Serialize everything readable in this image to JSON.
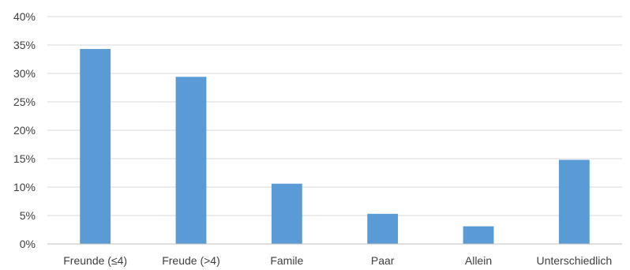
{
  "colors": {
    "bar": "#5B9BD5",
    "grid": "#D9D9D9",
    "axis": "#BFBFBF",
    "text": "#404040"
  },
  "chart_data": {
    "type": "bar",
    "title": "",
    "xlabel": "",
    "ylabel": "",
    "categories": [
      "Freunde (≤4)",
      "Freude (>4)",
      "Famile",
      "Paar",
      "Allein",
      "Unterschiedlich"
    ],
    "values": [
      34.3,
      29.4,
      10.6,
      5.3,
      3.1,
      14.8
    ],
    "value_unit": "percent",
    "ylim": [
      0,
      40
    ],
    "y_ticks": [
      0,
      5,
      10,
      15,
      20,
      25,
      30,
      35,
      40
    ],
    "y_tick_labels": [
      "0%",
      "5%",
      "10%",
      "15%",
      "20%",
      "25%",
      "30%",
      "35%",
      "40%"
    ],
    "grid": true,
    "legend": "none"
  }
}
